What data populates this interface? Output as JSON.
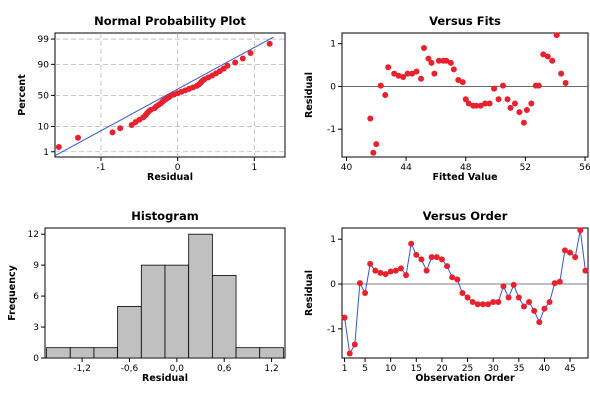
{
  "chart_data": [
    {
      "type": "scatter",
      "title": "Normal Probability Plot",
      "xlabel": "Residual",
      "ylabel": "Percent",
      "xlim": [
        -1.6,
        1.4
      ],
      "yticks": [
        1,
        10,
        50,
        90,
        99
      ],
      "xticks": [
        -1,
        0,
        1
      ],
      "y_scale": "normal-probability",
      "grid": true,
      "fit_line": {
        "x": [
          -1.65,
          1.25
        ],
        "percent": [
          0.5,
          99.2
        ],
        "color": "#3355cc"
      },
      "marker_color": "#e8212e",
      "points_x": [
        -1.55,
        -1.3,
        -0.85,
        -0.75,
        -0.6,
        -0.55,
        -0.5,
        -0.45,
        -0.42,
        -0.4,
        -0.38,
        -0.35,
        -0.3,
        -0.28,
        -0.25,
        -0.22,
        -0.2,
        -0.18,
        -0.15,
        -0.12,
        -0.1,
        -0.05,
        0.0,
        0.05,
        0.1,
        0.15,
        0.2,
        0.25,
        0.28,
        0.3,
        0.32,
        0.35,
        0.4,
        0.45,
        0.5,
        0.55,
        0.6,
        0.65,
        0.75,
        0.85,
        0.95,
        1.2
      ]
    },
    {
      "type": "scatter",
      "title": "Versus Fits",
      "xlabel": "Fitted Value",
      "ylabel": "Residual",
      "xlim": [
        39.7,
        56.2
      ],
      "ylim": [
        -1.65,
        1.25
      ],
      "xticks": [
        40,
        44,
        48,
        52,
        56
      ],
      "xtick_labels": [
        "40",
        "44",
        "48",
        "52",
        "56"
      ],
      "yticks": [
        -1,
        0,
        1
      ],
      "reference_line": 0,
      "marker_color": "#e8212e",
      "points": [
        [
          41.6,
          -0.75
        ],
        [
          41.8,
          -1.55
        ],
        [
          42.0,
          -1.35
        ],
        [
          42.3,
          0.02
        ],
        [
          42.6,
          -0.2
        ],
        [
          42.8,
          0.45
        ],
        [
          43.2,
          0.3
        ],
        [
          43.5,
          0.25
        ],
        [
          43.8,
          0.22
        ],
        [
          44.1,
          0.3
        ],
        [
          44.4,
          0.3
        ],
        [
          44.7,
          0.35
        ],
        [
          45.0,
          0.18
        ],
        [
          45.2,
          0.9
        ],
        [
          45.5,
          0.65
        ],
        [
          45.7,
          0.55
        ],
        [
          45.9,
          0.3
        ],
        [
          46.2,
          0.6
        ],
        [
          46.5,
          0.6
        ],
        [
          46.7,
          0.6
        ],
        [
          47.0,
          0.55
        ],
        [
          47.2,
          0.4
        ],
        [
          47.5,
          0.15
        ],
        [
          47.8,
          0.1
        ],
        [
          48.0,
          -0.3
        ],
        [
          48.2,
          -0.4
        ],
        [
          48.5,
          -0.45
        ],
        [
          48.7,
          -0.45
        ],
        [
          49.0,
          -0.45
        ],
        [
          49.3,
          -0.4
        ],
        [
          49.6,
          -0.4
        ],
        [
          49.9,
          -0.05
        ],
        [
          50.2,
          -0.3
        ],
        [
          50.5,
          0.02
        ],
        [
          50.8,
          -0.3
        ],
        [
          51.0,
          -0.5
        ],
        [
          51.3,
          -0.4
        ],
        [
          51.6,
          -0.6
        ],
        [
          51.9,
          -0.85
        ],
        [
          52.1,
          -0.55
        ],
        [
          52.4,
          -0.4
        ],
        [
          52.7,
          0.02
        ],
        [
          52.9,
          0.02
        ],
        [
          53.2,
          0.75
        ],
        [
          53.5,
          0.7
        ],
        [
          53.8,
          0.6
        ],
        [
          54.1,
          1.2
        ],
        [
          54.4,
          0.3
        ],
        [
          54.7,
          0.08
        ]
      ]
    },
    {
      "type": "bar",
      "title": "Histogram",
      "xlabel": "Residual",
      "ylabel": "Frequency",
      "bin_edges": [
        -1.65,
        -1.35,
        -1.05,
        -0.75,
        -0.45,
        -0.15,
        0.15,
        0.45,
        0.75,
        1.05,
        1.35
      ],
      "values": [
        1,
        1,
        1,
        5,
        9,
        9,
        12,
        8,
        1,
        1
      ],
      "xticks": [
        -1.2,
        -0.6,
        0.0,
        0.6,
        1.2
      ],
      "xtick_labels": [
        "-1,2",
        "-0,6",
        "0,0",
        "0,6",
        "1,2"
      ],
      "yticks": [
        0,
        3,
        6,
        9,
        12
      ],
      "ylim": [
        0,
        12.6
      ],
      "bar_color": "#c0c0c0"
    },
    {
      "type": "line",
      "title": "Versus Order",
      "xlabel": "Observation Order",
      "ylabel": "Residual",
      "xlim": [
        0.5,
        48.5
      ],
      "ylim": [
        -1.65,
        1.25
      ],
      "xticks": [
        1,
        5,
        10,
        15,
        20,
        25,
        30,
        35,
        40,
        45
      ],
      "yticks": [
        -1,
        0,
        1
      ],
      "reference_line": 0,
      "line_color": "#3355cc",
      "marker_color": "#e8212e",
      "x": [
        1,
        2,
        3,
        4,
        5,
        6,
        7,
        8,
        9,
        10,
        11,
        12,
        13,
        14,
        15,
        16,
        17,
        18,
        19,
        20,
        21,
        22,
        23,
        24,
        25,
        26,
        27,
        28,
        29,
        30,
        31,
        32,
        33,
        34,
        35,
        36,
        37,
        38,
        39,
        40,
        41,
        42,
        43,
        44,
        45,
        46,
        47,
        48
      ],
      "y": [
        -0.75,
        -1.55,
        -1.35,
        0.02,
        -0.2,
        0.45,
        0.3,
        0.25,
        0.22,
        0.28,
        0.3,
        0.35,
        0.2,
        0.9,
        0.65,
        0.55,
        0.3,
        0.6,
        0.6,
        0.55,
        0.4,
        0.15,
        0.1,
        -0.2,
        -0.3,
        -0.4,
        -0.45,
        -0.45,
        -0.45,
        -0.4,
        -0.4,
        -0.05,
        -0.3,
        -0.02,
        -0.3,
        -0.5,
        -0.4,
        -0.6,
        -0.85,
        -0.55,
        -0.4,
        0.02,
        0.05,
        0.75,
        0.7,
        0.6,
        1.2,
        0.3
      ]
    }
  ]
}
